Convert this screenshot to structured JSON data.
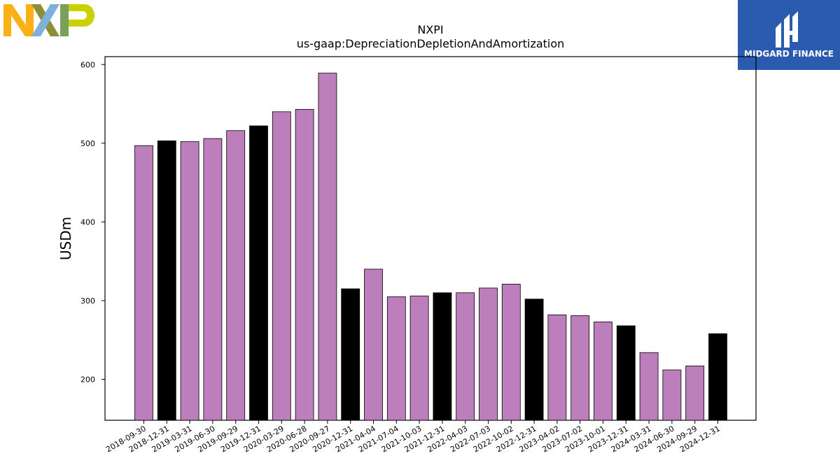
{
  "brand": {
    "left_logo": "NXP",
    "right_logo_text": "MIDGARD FINANCE",
    "colors": {
      "nxp_orange": "#F9B116",
      "nxp_blue": "#7BB1DB",
      "nxp_green": "#C9D200",
      "midgard_blue": "#2B5BAE"
    }
  },
  "chart_data": {
    "type": "bar",
    "title": "NXPI",
    "subtitle": "us-gaap:DepreciationDepletionAndAmortization",
    "xlabel": "",
    "ylabel": "USDm",
    "ylim": [
      148,
      610
    ],
    "yticks": [
      200,
      300,
      400,
      500,
      600
    ],
    "grid": false,
    "legend": "none",
    "colors": {
      "quarter": "#BC7FBC",
      "year_end": "#000000",
      "edge": "#000000"
    },
    "categories": [
      "2018-09-30",
      "2018-12-31",
      "2019-03-31",
      "2019-06-30",
      "2019-09-29",
      "2019-12-31",
      "2020-03-29",
      "2020-06-28",
      "2020-09-27",
      "2020-12-31",
      "2021-04-04",
      "2021-07-04",
      "2021-10-03",
      "2021-12-31",
      "2022-04-03",
      "2022-07-03",
      "2022-10-02",
      "2022-12-31",
      "2023-04-02",
      "2023-07-02",
      "2023-10-01",
      "2023-12-31",
      "2024-03-31",
      "2024-06-30",
      "2024-09-29",
      "2024-12-31"
    ],
    "values": [
      497,
      503,
      502,
      506,
      516,
      522,
      540,
      543,
      589,
      315,
      340,
      305,
      306,
      310,
      310,
      316,
      321,
      302,
      282,
      281,
      273,
      268,
      234,
      212,
      217,
      258
    ],
    "year_end": [
      false,
      true,
      false,
      false,
      false,
      true,
      false,
      false,
      false,
      true,
      false,
      false,
      false,
      true,
      false,
      false,
      false,
      true,
      false,
      false,
      false,
      true,
      false,
      false,
      false,
      true
    ]
  }
}
